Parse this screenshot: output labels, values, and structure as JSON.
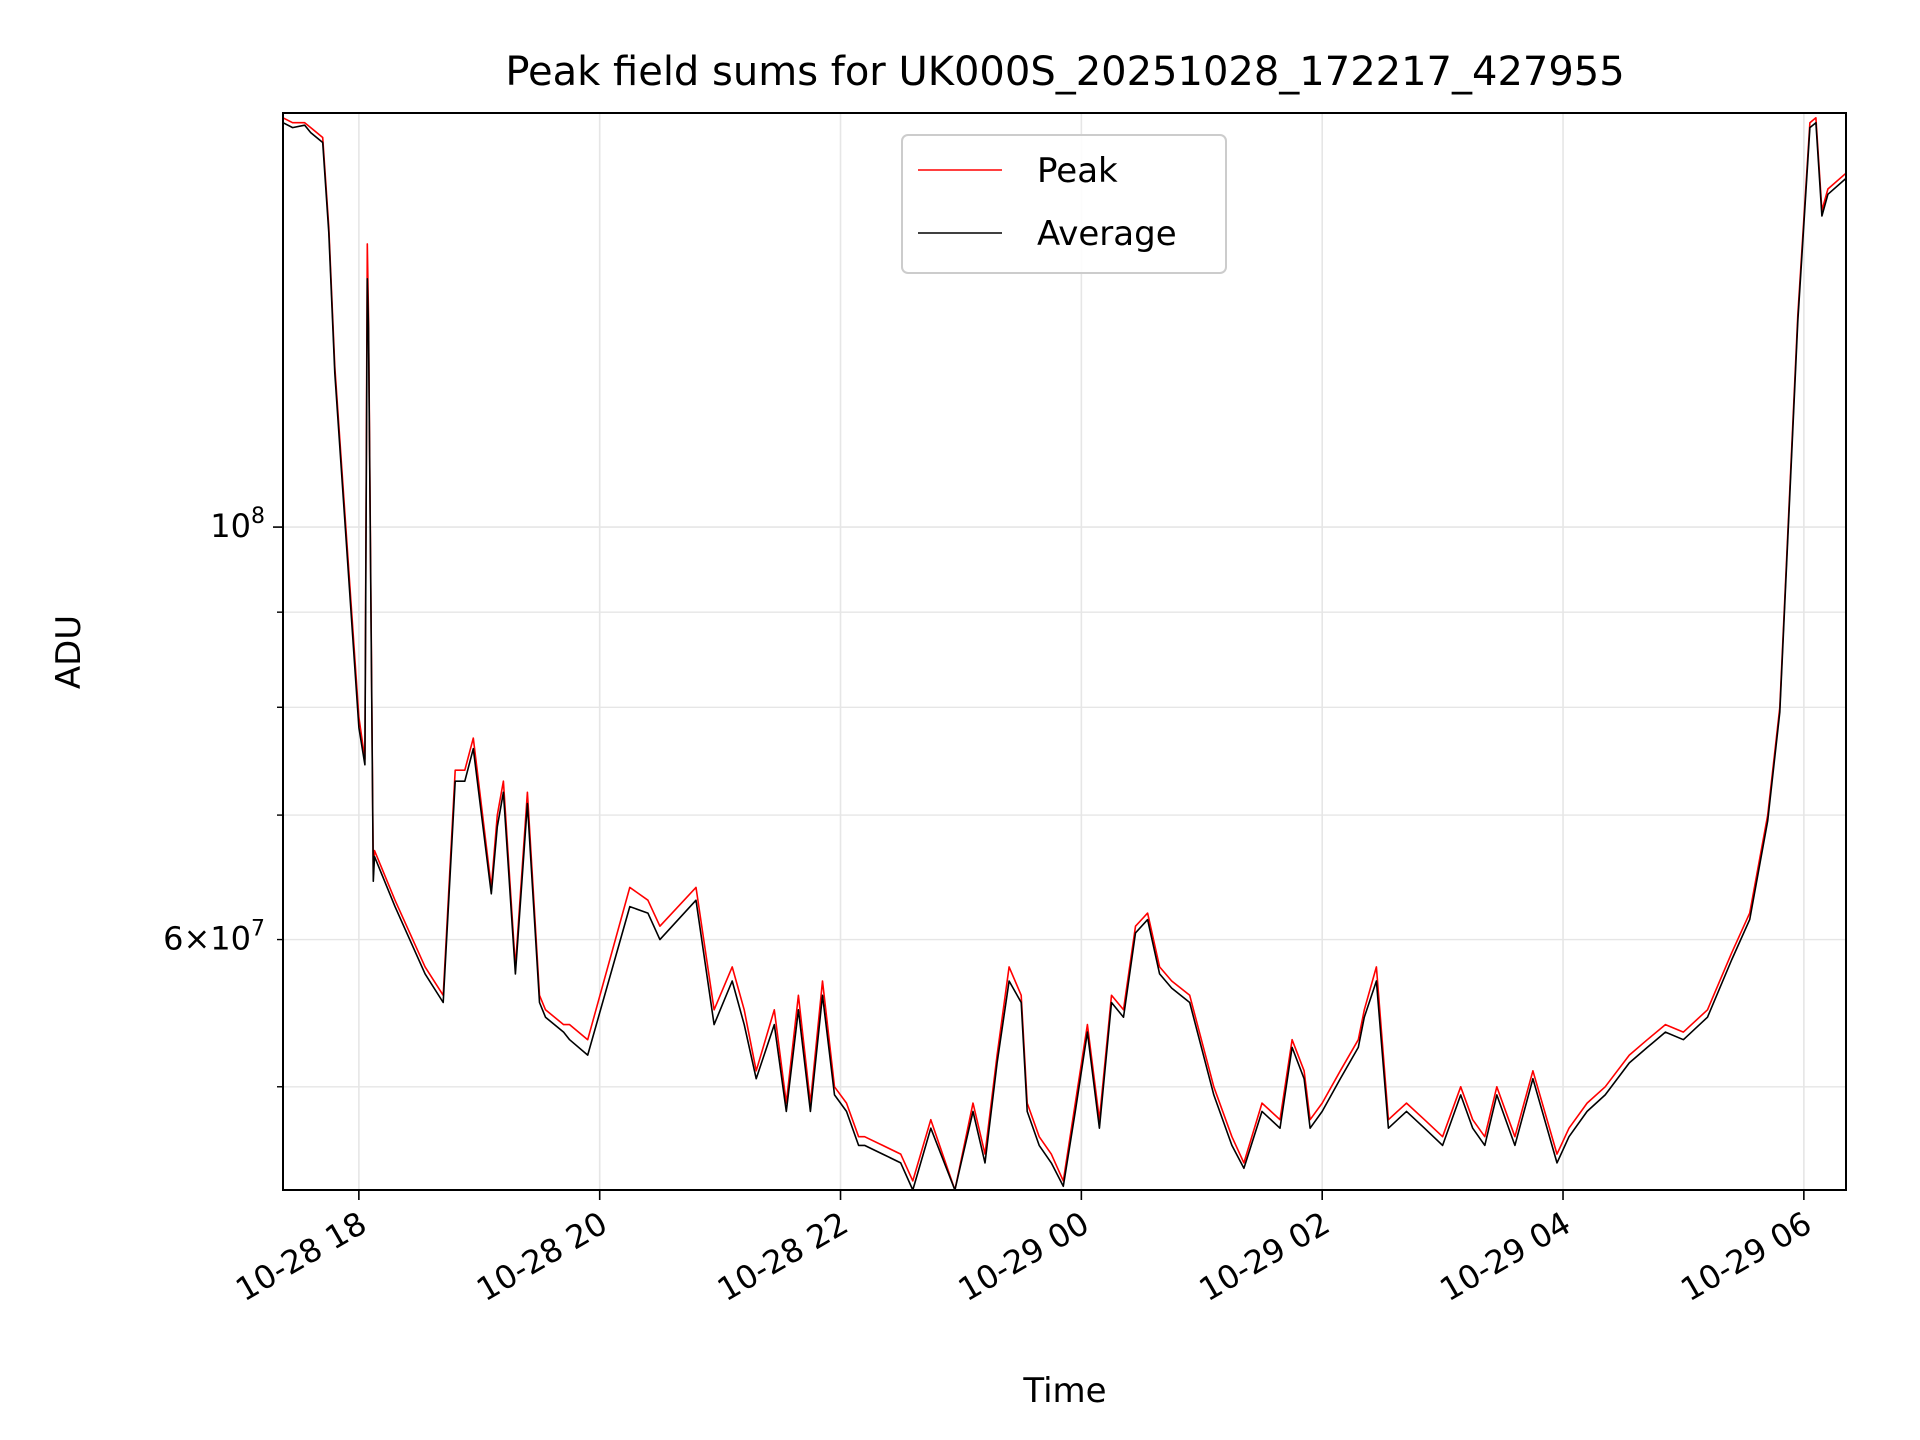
{
  "colors": {
    "peak": "#ff0000",
    "average": "#000000",
    "grid": "#e6e6e6",
    "legend_border": "#cccccc"
  },
  "chart_data": {
    "type": "line",
    "title": "Peak field sums for UK000S_20251028_172217_427955",
    "xlabel": "Time",
    "ylabel": "ADU",
    "yscale": "log",
    "grid": true,
    "legend_position": "upper center",
    "xlim_hours": [
      -0.63,
      12.35
    ],
    "ylim": [
      44000000,
      167000000
    ],
    "x_ticks": [
      {
        "hour": 0,
        "label": "10-28 18"
      },
      {
        "hour": 2,
        "label": "10-28 20"
      },
      {
        "hour": 4,
        "label": "10-28 22"
      },
      {
        "hour": 6,
        "label": "10-29 00"
      },
      {
        "hour": 8,
        "label": "10-29 02"
      },
      {
        "hour": 10,
        "label": "10-29 04"
      },
      {
        "hour": 12,
        "label": "10-29 06"
      }
    ],
    "y_major_ticks": [
      {
        "value": 100000000,
        "base": "10",
        "exp": "8"
      }
    ],
    "y_minor_ticks": [
      {
        "value": 60000000,
        "mant": "6",
        "base": "10",
        "exp": "7"
      },
      {
        "value": 50000000
      },
      {
        "value": 70000000
      },
      {
        "value": 80000000
      },
      {
        "value": 90000000
      }
    ],
    "series": [
      {
        "name": "Peak",
        "x_hours": [
          -0.63,
          -0.55,
          -0.45,
          -0.4,
          -0.3,
          -0.25,
          -0.2,
          0.0,
          0.05,
          0.07,
          0.08,
          0.12,
          0.13,
          0.3,
          0.55,
          0.7,
          0.8,
          0.88,
          0.95,
          1.1,
          1.15,
          1.2,
          1.3,
          1.4,
          1.5,
          1.55,
          1.7,
          1.75,
          1.9,
          2.25,
          2.4,
          2.5,
          2.8,
          2.95,
          3.1,
          3.2,
          3.3,
          3.45,
          3.55,
          3.65,
          3.75,
          3.85,
          3.95,
          4.05,
          4.15,
          4.2,
          4.35,
          4.5,
          4.6,
          4.75,
          4.95,
          5.1,
          5.2,
          5.3,
          5.4,
          5.5,
          5.55,
          5.65,
          5.75,
          5.85,
          5.95,
          6.05,
          6.15,
          6.25,
          6.35,
          6.45,
          6.55,
          6.65,
          6.75,
          6.9,
          7.1,
          7.25,
          7.35,
          7.5,
          7.65,
          7.75,
          7.85,
          7.9,
          8.0,
          8.15,
          8.3,
          8.35,
          8.45,
          8.55,
          8.7,
          8.85,
          9.0,
          9.15,
          9.25,
          9.35,
          9.45,
          9.6,
          9.75,
          9.95,
          10.05,
          10.2,
          10.35,
          10.55,
          10.7,
          10.85,
          11.0,
          11.2,
          11.4,
          11.55,
          11.7,
          11.8,
          11.95,
          12.05,
          12.1,
          12.15,
          12.2,
          12.35
        ],
        "values": [
          166000000,
          165000000,
          165000000,
          164000000,
          162000000,
          145000000,
          122000000,
          79000000,
          75000000,
          142000000,
          130000000,
          65000000,
          67000000,
          63000000,
          58000000,
          56000000,
          74000000,
          74000000,
          77000000,
          64000000,
          70000000,
          73000000,
          58000000,
          72000000,
          56000000,
          55000000,
          54000000,
          54000000,
          53000000,
          64000000,
          63000000,
          61000000,
          64000000,
          55000000,
          58000000,
          55000000,
          51000000,
          55000000,
          49000000,
          56000000,
          49000000,
          57000000,
          50000000,
          49000000,
          47000000,
          47000000,
          46500000,
          46000000,
          44500000,
          48000000,
          44000000,
          49000000,
          46000000,
          52000000,
          58000000,
          56000000,
          49000000,
          47000000,
          46000000,
          44500000,
          49000000,
          54000000,
          48000000,
          56000000,
          55000000,
          61000000,
          62000000,
          58000000,
          57000000,
          56000000,
          50000000,
          47000000,
          45500000,
          49000000,
          48000000,
          53000000,
          51000000,
          48000000,
          49000000,
          51000000,
          53000000,
          55000000,
          58000000,
          48000000,
          49000000,
          48000000,
          47000000,
          50000000,
          48000000,
          47000000,
          50000000,
          47000000,
          51000000,
          46000000,
          47500000,
          49000000,
          50000000,
          52000000,
          53000000,
          54000000,
          53500000,
          55000000,
          59000000,
          62000000,
          70000000,
          80000000,
          130000000,
          165000000,
          166000000,
          148000000,
          152000000,
          155000000
        ]
      },
      {
        "name": "Average",
        "x_hours": [
          -0.63,
          -0.55,
          -0.45,
          -0.4,
          -0.3,
          -0.25,
          -0.2,
          0.0,
          0.05,
          0.07,
          0.08,
          0.12,
          0.13,
          0.3,
          0.55,
          0.7,
          0.8,
          0.88,
          0.95,
          1.1,
          1.15,
          1.2,
          1.3,
          1.4,
          1.5,
          1.55,
          1.7,
          1.75,
          1.9,
          2.25,
          2.4,
          2.5,
          2.8,
          2.95,
          3.1,
          3.2,
          3.3,
          3.45,
          3.55,
          3.65,
          3.75,
          3.85,
          3.95,
          4.05,
          4.15,
          4.2,
          4.35,
          4.5,
          4.6,
          4.75,
          4.95,
          5.1,
          5.2,
          5.3,
          5.4,
          5.5,
          5.55,
          5.65,
          5.75,
          5.85,
          5.95,
          6.05,
          6.15,
          6.25,
          6.35,
          6.45,
          6.55,
          6.65,
          6.75,
          6.9,
          7.1,
          7.25,
          7.35,
          7.5,
          7.65,
          7.75,
          7.85,
          7.9,
          8.0,
          8.15,
          8.3,
          8.35,
          8.45,
          8.55,
          8.7,
          8.85,
          9.0,
          9.15,
          9.25,
          9.35,
          9.45,
          9.6,
          9.75,
          9.95,
          10.05,
          10.2,
          10.35,
          10.55,
          10.7,
          10.85,
          11.0,
          11.2,
          11.4,
          11.55,
          11.7,
          11.8,
          11.95,
          12.05,
          12.1,
          12.15,
          12.2,
          12.35
        ],
        "values": [
          165000000,
          164000000,
          164500000,
          163000000,
          161000000,
          144000000,
          121000000,
          78000000,
          74500000,
          136000000,
          128000000,
          64500000,
          66500000,
          62500000,
          57500000,
          55500000,
          73000000,
          73000000,
          76000000,
          63500000,
          69000000,
          72000000,
          57500000,
          71000000,
          55500000,
          54500000,
          53500000,
          53000000,
          52000000,
          62500000,
          62000000,
          60000000,
          63000000,
          54000000,
          57000000,
          54000000,
          50500000,
          54000000,
          48500000,
          55000000,
          48500000,
          56000000,
          49500000,
          48500000,
          46500000,
          46500000,
          46000000,
          45500000,
          44000000,
          47500000,
          44000000,
          48500000,
          45500000,
          51500000,
          57000000,
          55500000,
          48500000,
          46500000,
          45500000,
          44200000,
          48500000,
          53500000,
          47500000,
          55500000,
          54500000,
          60500000,
          61500000,
          57500000,
          56500000,
          55500000,
          49500000,
          46500000,
          45200000,
          48500000,
          47500000,
          52500000,
          50500000,
          47500000,
          48500000,
          50500000,
          52500000,
          54500000,
          57000000,
          47500000,
          48500000,
          47500000,
          46500000,
          49500000,
          47500000,
          46500000,
          49500000,
          46500000,
          50500000,
          45500000,
          47000000,
          48500000,
          49500000,
          51500000,
          52500000,
          53500000,
          53000000,
          54500000,
          58500000,
          61500000,
          69500000,
          79500000,
          129000000,
          164000000,
          165000000,
          147000000,
          151000000,
          154000000
        ]
      }
    ]
  }
}
